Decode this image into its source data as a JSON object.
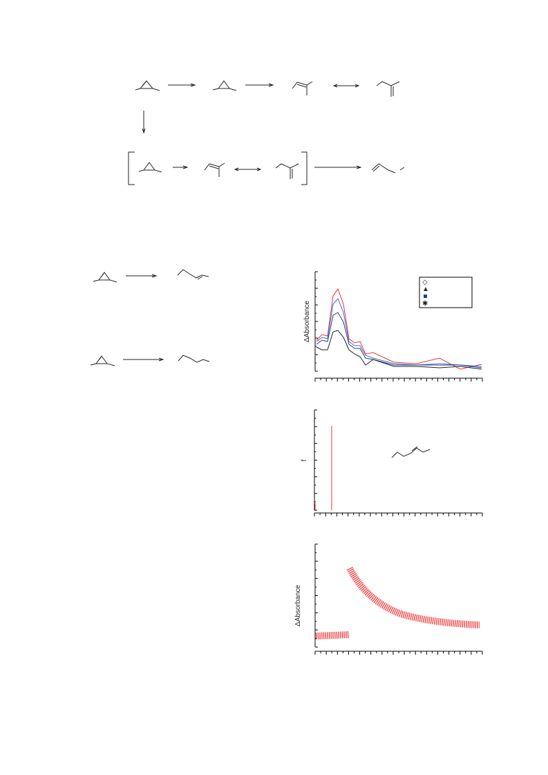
{
  "figure": {
    "panels": [
      {
        "y_label": "ΔAbsorbance"
      },
      {
        "y_label": "f"
      },
      {
        "y_label": "ΔAbsorbance"
      }
    ]
  }
}
